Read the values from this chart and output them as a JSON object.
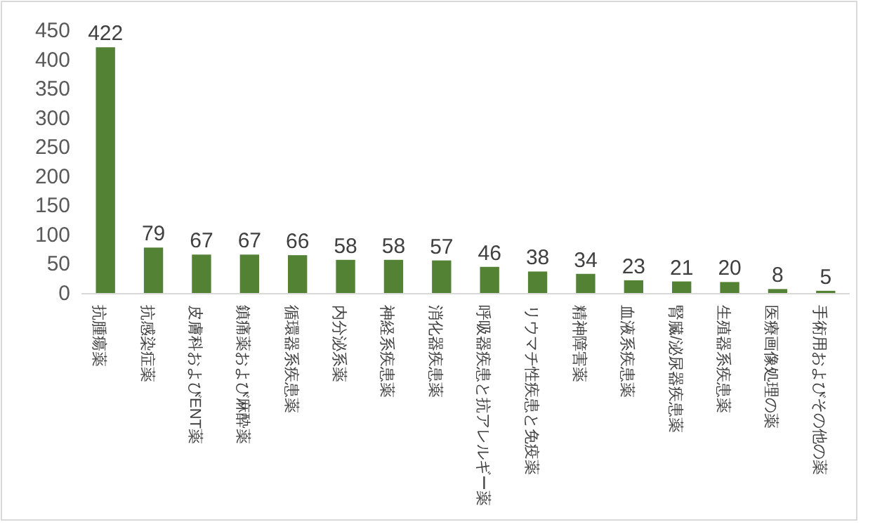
{
  "chart_data": {
    "type": "bar",
    "categories": [
      "抗腫瘍薬",
      "抗感染症薬",
      "皮膚科およびENT薬",
      "鎮痛薬および麻酔薬",
      "循環器系疾患薬",
      "内分泌系薬",
      "神経系疾患薬",
      "消化器疾患薬",
      "呼吸器疾患と抗アレルギー薬",
      "リウマチ性疾患と免疫薬",
      "精神障害薬",
      "血液系疾患薬",
      "腎臓/泌尿器疾患薬",
      "生殖器系疾患薬",
      "医療画像処理の薬",
      "手術用およびその他の薬"
    ],
    "values": [
      422,
      79,
      67,
      67,
      66,
      58,
      58,
      57,
      46,
      38,
      34,
      23,
      21,
      20,
      8,
      5
    ],
    "color": "#548235",
    "ylim": [
      0,
      450
    ],
    "yticks": [
      0,
      50,
      100,
      150,
      200,
      250,
      300,
      350,
      400,
      450
    ],
    "data_labels": true
  }
}
